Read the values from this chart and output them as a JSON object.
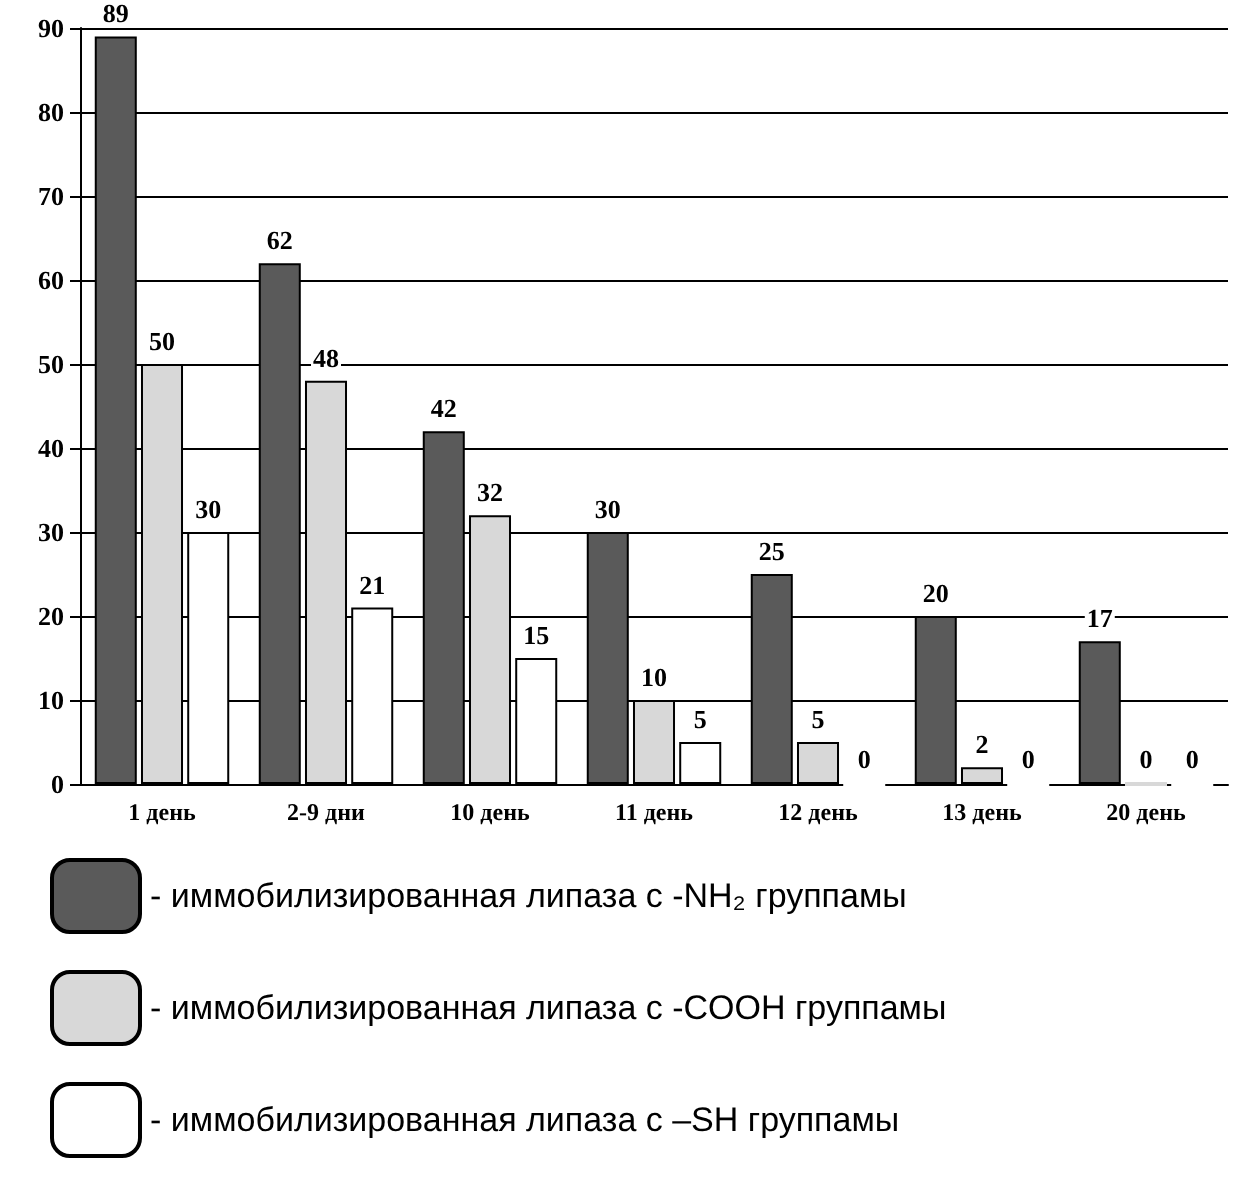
{
  "chart_data": {
    "type": "bar",
    "categories": [
      "1 день",
      "2-9 дни",
      "10 день",
      "11 день",
      "12 день",
      "13 день",
      "20 день"
    ],
    "series": [
      {
        "name": "- иммобилизированная липаза с -NH₂ группамы",
        "color": "#5a5a5a",
        "values": [
          89,
          62,
          42,
          30,
          25,
          20,
          17
        ]
      },
      {
        "name": "- иммобилизированная липаза с -COOH группамы",
        "color": "#d8d8d8",
        "values": [
          50,
          48,
          32,
          10,
          5,
          2,
          0
        ]
      },
      {
        "name": "- иммобилизированная липаза с –SH группамы",
        "color": "#ffffff",
        "values": [
          30,
          21,
          15,
          5,
          0,
          0,
          0
        ]
      }
    ],
    "ylim": [
      0,
      90
    ],
    "yticks": [
      0,
      10,
      20,
      30,
      40,
      50,
      60,
      70,
      80,
      90
    ],
    "grid": "y",
    "legend": "bottom",
    "data_labels": true
  }
}
